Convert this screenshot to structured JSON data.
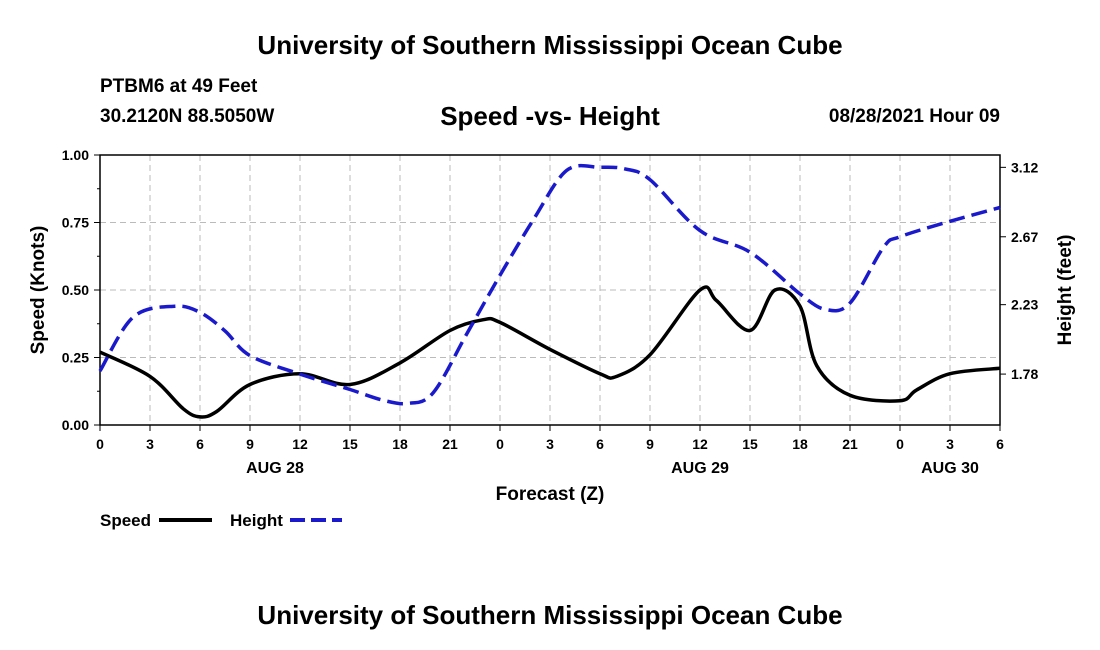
{
  "header": {
    "title": "University of Southern Mississippi Ocean Cube",
    "station": "PTBM6 at 49 Feet",
    "coords": "30.2120N  88.5050W",
    "subtitle": "Speed -vs- Height",
    "datetime": "08/28/2021 Hour 09"
  },
  "footer": {
    "title": "University of Southern Mississippi Ocean Cube"
  },
  "colors": {
    "speed": "#000000",
    "height": "#1a1acc",
    "grid": "#bbbbbb"
  },
  "chart_data": {
    "type": "line",
    "title": "Speed -vs- Height",
    "xlabel": "Forecast (Z)",
    "ylabel": "Speed (Knots)",
    "y2label": "Height (feet)",
    "xlim": [
      0,
      54
    ],
    "ylim": [
      0,
      1.0
    ],
    "y2lim": [
      1.45,
      3.2
    ],
    "x_ticks": [
      0,
      3,
      6,
      9,
      12,
      15,
      18,
      21,
      24,
      27,
      30,
      33,
      36,
      39,
      42,
      45,
      48,
      51,
      54
    ],
    "x_tick_labels": [
      "0",
      "3",
      "6",
      "9",
      "12",
      "15",
      "18",
      "21",
      "0",
      "3",
      "6",
      "9",
      "12",
      "15",
      "18",
      "21",
      "0",
      "3",
      "6"
    ],
    "y_ticks": [
      0,
      0.25,
      0.5,
      0.75,
      1.0
    ],
    "y_tick_labels": [
      "0.00",
      "0.25",
      "0.50",
      "0.75",
      "1.00"
    ],
    "y2_ticks": [
      1.78,
      2.23,
      2.67,
      3.12
    ],
    "y2_tick_labels": [
      "1.78",
      "2.23",
      "2.67",
      "3.12"
    ],
    "day_labels": [
      {
        "x": 10.5,
        "label": "AUG 28"
      },
      {
        "x": 36,
        "label": "AUG 29"
      },
      {
        "x": 51,
        "label": "AUG 30"
      }
    ],
    "grid": true,
    "legend": "bottom-left",
    "series": [
      {
        "name": "Speed",
        "axis": "left",
        "style": "solid",
        "color": "#000000",
        "x": [
          0,
          3,
          5,
          6,
          7,
          9,
          12,
          15,
          18,
          21,
          23,
          24,
          27,
          30,
          31,
          33,
          36,
          37,
          39,
          40.5,
          42,
          43,
          45,
          48,
          49,
          51,
          54
        ],
        "values": [
          0.27,
          0.18,
          0.06,
          0.03,
          0.05,
          0.15,
          0.19,
          0.15,
          0.23,
          0.35,
          0.39,
          0.38,
          0.28,
          0.19,
          0.18,
          0.26,
          0.5,
          0.46,
          0.35,
          0.5,
          0.44,
          0.22,
          0.11,
          0.09,
          0.13,
          0.19,
          0.21
        ]
      },
      {
        "name": "Height",
        "axis": "right",
        "style": "dashed",
        "color": "#1a1acc",
        "x": [
          0,
          2,
          4.5,
          6,
          7.5,
          9,
          12,
          15,
          17,
          18.5,
          20,
          22,
          24,
          26,
          28,
          30,
          31.5,
          33,
          36,
          39,
          42,
          43.5,
          45,
          47,
          48,
          51,
          54
        ],
        "values": [
          1.8,
          2.15,
          2.22,
          2.18,
          2.06,
          1.9,
          1.78,
          1.68,
          1.61,
          1.59,
          1.66,
          2.04,
          2.42,
          2.78,
          3.1,
          3.12,
          3.11,
          3.04,
          2.71,
          2.57,
          2.3,
          2.2,
          2.24,
          2.6,
          2.67,
          2.77,
          2.86
        ]
      }
    ]
  }
}
